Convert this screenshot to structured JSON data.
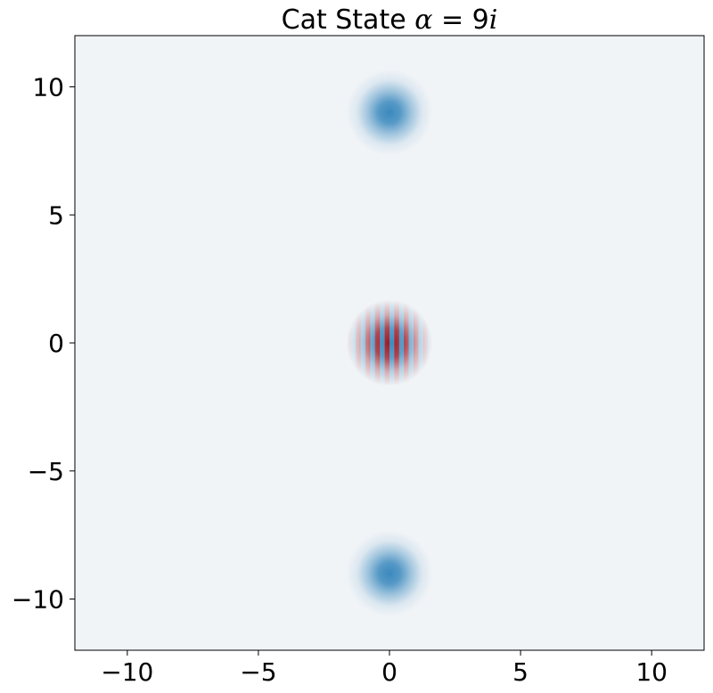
{
  "chart_data": {
    "type": "heatmap",
    "title": "Cat State α = 9i",
    "title_parts": {
      "prefix": "Cat State ",
      "alpha": "α",
      "equals": " = 9",
      "imag": "i"
    },
    "xlim": [
      -12,
      12
    ],
    "ylim": [
      -12,
      12
    ],
    "x_ticks": [
      -10,
      -5,
      0,
      5,
      10
    ],
    "y_ticks": [
      -10,
      -5,
      0,
      5,
      10
    ],
    "x_tick_labels": [
      "−10",
      "−5",
      "0",
      "5",
      "10"
    ],
    "y_tick_labels": [
      "−10",
      "−5",
      "0",
      "5",
      "10"
    ],
    "grid": false,
    "colormap": "RdBu",
    "background_color": "#f1f4f7",
    "positive_color": "#3b89bd",
    "negative_color": "#9e1a25",
    "features": [
      {
        "name": "coherent-peak-top",
        "x": 0,
        "y": 9,
        "sigma": 0.55,
        "amplitude": 0.55,
        "kind": "gaussian"
      },
      {
        "name": "coherent-peak-bottom",
        "x": 0,
        "y": -9,
        "sigma": 0.55,
        "amplitude": 0.55,
        "kind": "gaussian"
      },
      {
        "name": "interference-fringes",
        "x": 0,
        "y": 0,
        "sigma": 0.55,
        "amplitude": 1.0,
        "kind": "fringes",
        "fringe_frequency": 18
      }
    ]
  }
}
